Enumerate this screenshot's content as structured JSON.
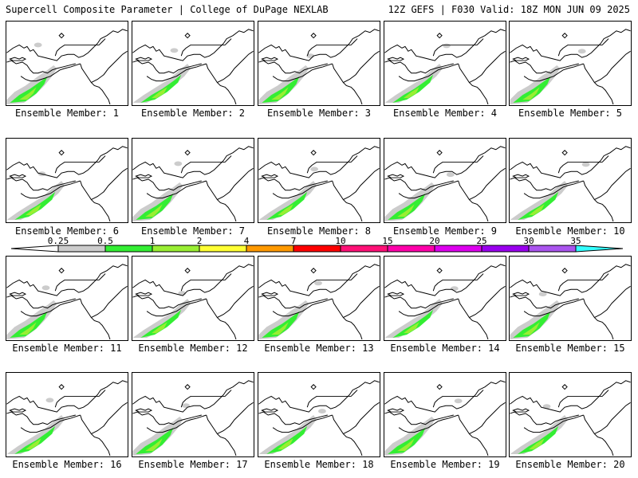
{
  "header": {
    "left_title": "Supercell Composite Parameter | College of DuPage NEXLAB",
    "right_title": "12Z GEFS | F030 Valid: 18Z MON JUN 09 2025"
  },
  "legend": {
    "thresholds": [
      "0.25",
      "0.5",
      "1",
      "2",
      "4",
      "7",
      "10",
      "15",
      "20",
      "25",
      "30",
      "35"
    ],
    "colors": [
      "#ffffff",
      "#cccccc",
      "#33ee33",
      "#99ee33",
      "#ffff33",
      "#ff9900",
      "#ff0000",
      "#ff1177",
      "#ff00aa",
      "#dd00ee",
      "#9900ee",
      "#aa55ee",
      "#33ffff"
    ]
  },
  "panels": [
    {
      "label": "Ensemble Member: 1"
    },
    {
      "label": "Ensemble Member: 2"
    },
    {
      "label": "Ensemble Member: 3"
    },
    {
      "label": "Ensemble Member: 4"
    },
    {
      "label": "Ensemble Member: 5"
    },
    {
      "label": "Ensemble Member: 6"
    },
    {
      "label": "Ensemble Member: 7"
    },
    {
      "label": "Ensemble Member: 8"
    },
    {
      "label": "Ensemble Member: 9"
    },
    {
      "label": "Ensemble Member: 10"
    },
    {
      "label": "Ensemble Member: 11"
    },
    {
      "label": "Ensemble Member: 12"
    },
    {
      "label": "Ensemble Member: 13"
    },
    {
      "label": "Ensemble Member: 14"
    },
    {
      "label": "Ensemble Member: 15"
    },
    {
      "label": "Ensemble Member: 16"
    },
    {
      "label": "Ensemble Member: 17"
    },
    {
      "label": "Ensemble Member: 18"
    },
    {
      "label": "Ensemble Member: 19"
    },
    {
      "label": "Ensemble Member: 20"
    }
  ]
}
